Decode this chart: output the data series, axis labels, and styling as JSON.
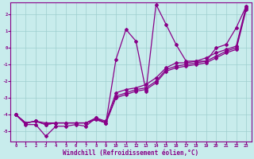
{
  "xlabel": "Windchill (Refroidissement éolien,°C)",
  "xlim": [
    -0.5,
    23.5
  ],
  "ylim": [
    -5.6,
    2.7
  ],
  "yticks": [
    -5,
    -4,
    -3,
    -2,
    -1,
    0,
    1,
    2
  ],
  "xticks": [
    0,
    1,
    2,
    3,
    4,
    5,
    6,
    7,
    8,
    9,
    10,
    11,
    12,
    13,
    14,
    15,
    16,
    17,
    18,
    19,
    20,
    21,
    22,
    23
  ],
  "background_color": "#c8ecec",
  "grid_color": "#9ecece",
  "line_color": "#880088",
  "line1_x": [
    0,
    1,
    2,
    3,
    4,
    5,
    6,
    7,
    8,
    9,
    10,
    11,
    12,
    13,
    14,
    15,
    16,
    17,
    18,
    19,
    20,
    21,
    22,
    23
  ],
  "line1_y": [
    -4.0,
    -4.6,
    -4.6,
    -5.3,
    -4.7,
    -4.7,
    -4.6,
    -4.7,
    -4.2,
    -4.5,
    -0.7,
    1.1,
    0.4,
    -2.6,
    2.6,
    1.4,
    0.2,
    -0.8,
    -0.8,
    -0.8,
    0.0,
    0.2,
    1.2,
    2.5
  ],
  "line2_x": [
    0,
    1,
    2,
    3,
    4,
    5,
    6,
    7,
    8,
    9,
    10,
    11,
    12,
    13,
    14,
    15,
    16,
    17,
    18,
    19,
    20,
    21,
    22,
    23
  ],
  "line2_y": [
    -4.0,
    -4.5,
    -4.4,
    -4.5,
    -4.5,
    -4.5,
    -4.5,
    -4.5,
    -4.2,
    -4.4,
    -2.7,
    -2.5,
    -2.4,
    -2.2,
    -1.8,
    -1.2,
    -0.9,
    -0.9,
    -0.8,
    -0.6,
    -0.3,
    -0.1,
    0.1,
    2.5
  ],
  "line3_x": [
    0,
    1,
    2,
    3,
    4,
    5,
    6,
    7,
    8,
    9,
    10,
    11,
    12,
    13,
    14,
    15,
    16,
    17,
    18,
    19,
    20,
    21,
    22,
    23
  ],
  "line3_y": [
    -4.0,
    -4.5,
    -4.4,
    -4.6,
    -4.5,
    -4.5,
    -4.5,
    -4.5,
    -4.3,
    -4.5,
    -2.9,
    -2.7,
    -2.5,
    -2.4,
    -2.0,
    -1.3,
    -1.1,
    -1.0,
    -0.9,
    -0.8,
    -0.5,
    -0.2,
    0.0,
    2.4
  ],
  "line4_x": [
    0,
    1,
    2,
    3,
    4,
    5,
    6,
    7,
    8,
    9,
    10,
    11,
    12,
    13,
    14,
    15,
    16,
    17,
    18,
    19,
    20,
    21,
    22,
    23
  ],
  "line4_y": [
    -4.0,
    -4.5,
    -4.4,
    -4.6,
    -4.5,
    -4.5,
    -4.5,
    -4.5,
    -4.3,
    -4.5,
    -3.0,
    -2.8,
    -2.6,
    -2.5,
    -2.1,
    -1.4,
    -1.2,
    -1.1,
    -1.0,
    -0.9,
    -0.6,
    -0.3,
    -0.1,
    2.3
  ]
}
